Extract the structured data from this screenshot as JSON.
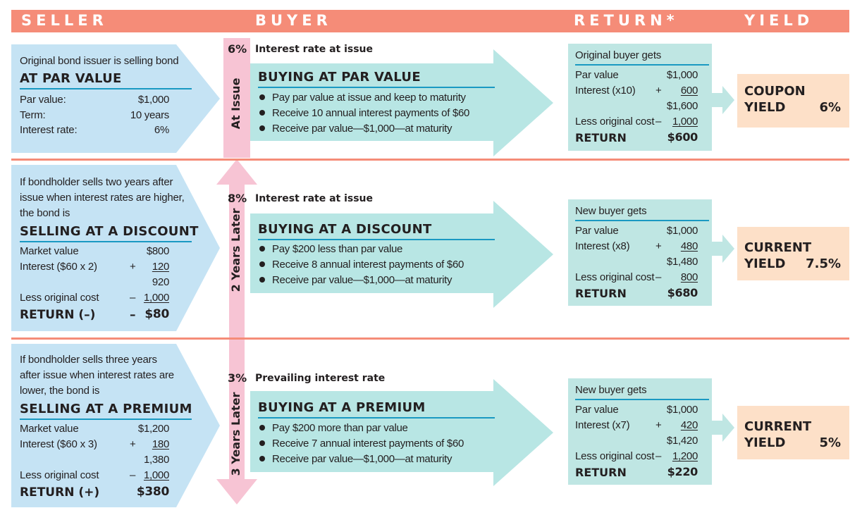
{
  "header": {
    "seller": "SELLER",
    "buyer": "BUYER",
    "return": "RETURN*",
    "yield": "YIELD"
  },
  "colors": {
    "header": "#f58c78",
    "seller_box": "#c5e3f4",
    "buyer_arrow": "#b8e6e4",
    "timeline": "#f7c4d4",
    "yield_box": "#fde0c8",
    "heading_rule": "#1a99c2"
  },
  "rows": [
    {
      "seller": {
        "intro": [
          "Original bond issuer is selling bond"
        ],
        "heading": "AT PAR VALUE",
        "lines": [
          {
            "label": "Par value:",
            "value": "$1,000"
          },
          {
            "label": "Term:",
            "value": "10 years"
          },
          {
            "label": "Interest rate:",
            "value": "6%"
          }
        ]
      },
      "timeline_label": "At Issue",
      "rate_pct": "6%",
      "rate_label": "Interest rate at issue",
      "buyer": {
        "heading": "BUYING AT PAR VALUE",
        "bullets": [
          "Pay par value at issue and keep to maturity",
          "Receive 10 annual interest payments of $60",
          "Receive par value—$1,000—at maturity"
        ]
      },
      "return": {
        "title": "Original buyer gets",
        "par_label": "Par value",
        "par_value": "$1,000",
        "interest_label": "Interest (x10)",
        "interest_op": "+",
        "interest_value": "600",
        "subtotal": "$1,600",
        "cost_label": "Less original cost",
        "cost_op": "–",
        "cost_value": "1,000",
        "return_label": "RETURN",
        "return_value": "$600"
      },
      "yield": {
        "line1": "COUPON",
        "line2": "YIELD",
        "value": "6%"
      }
    },
    {
      "seller": {
        "intro": [
          "If bondholder sells two years after",
          "issue when interest rates are higher,",
          "the bond is"
        ],
        "heading": "SELLING AT A DISCOUNT",
        "market_label": "Market value",
        "market_value": "$800",
        "interest_label": "Interest ($60 x 2)",
        "interest_op": "+",
        "interest_value": "120",
        "subtotal": "920",
        "cost_label": "Less original cost",
        "cost_op": "–",
        "cost_value": "1,000",
        "return_label": "RETURN (–)",
        "return_op": "–",
        "return_value": "$80"
      },
      "timeline_label": "2 Years Later",
      "rate_pct": "8%",
      "rate_label": "Interest rate at issue",
      "buyer": {
        "heading": "BUYING AT A DISCOUNT",
        "bullets": [
          "Pay $200 less than par value",
          "Receive 8 annual interest payments of $60",
          "Receive par value—$1,000—at maturity"
        ]
      },
      "return": {
        "title": "New buyer gets",
        "par_label": "Par value",
        "par_value": "$1,000",
        "interest_label": "Interest (x8)",
        "interest_op": "+",
        "interest_value": "480",
        "subtotal": "$1,480",
        "cost_label": "Less original cost",
        "cost_op": "–",
        "cost_value": "800",
        "return_label": "RETURN",
        "return_value": "$680"
      },
      "yield": {
        "line1": "CURRENT",
        "line2": "YIELD",
        "value": "7.5%"
      }
    },
    {
      "seller": {
        "intro": [
          "If bondholder sells three years",
          "after issue when interest rates are",
          "lower, the bond is"
        ],
        "heading": "SELLING AT A PREMIUM",
        "market_label": "Market value",
        "market_value": "$1,200",
        "interest_label": "Interest ($60 x 3)",
        "interest_op": "+",
        "interest_value": "180",
        "subtotal": "1,380",
        "cost_label": "Less original cost",
        "cost_op": "–",
        "cost_value": "1,000",
        "return_label": "RETURN (+)",
        "return_op": "",
        "return_value": "$380"
      },
      "timeline_label": "3 Years Later",
      "rate_pct": "3%",
      "rate_label": "Prevailing interest rate",
      "buyer": {
        "heading": "BUYING AT A PREMIUM",
        "bullets": [
          "Pay $200 more than par value",
          "Receive 7 annual interest payments of $60",
          "Receive par value—$1,000—at maturity"
        ]
      },
      "return": {
        "title": "New buyer gets",
        "par_label": "Par value",
        "par_value": "$1,000",
        "interest_label": "Interest (x7)",
        "interest_op": "+",
        "interest_value": "420",
        "subtotal": "$1,420",
        "cost_label": "Less original cost",
        "cost_op": "–",
        "cost_value": "1,200",
        "return_label": "RETURN",
        "return_value": "$220"
      },
      "yield": {
        "line1": "CURRENT",
        "line2": "YIELD",
        "value": "5%"
      }
    }
  ]
}
